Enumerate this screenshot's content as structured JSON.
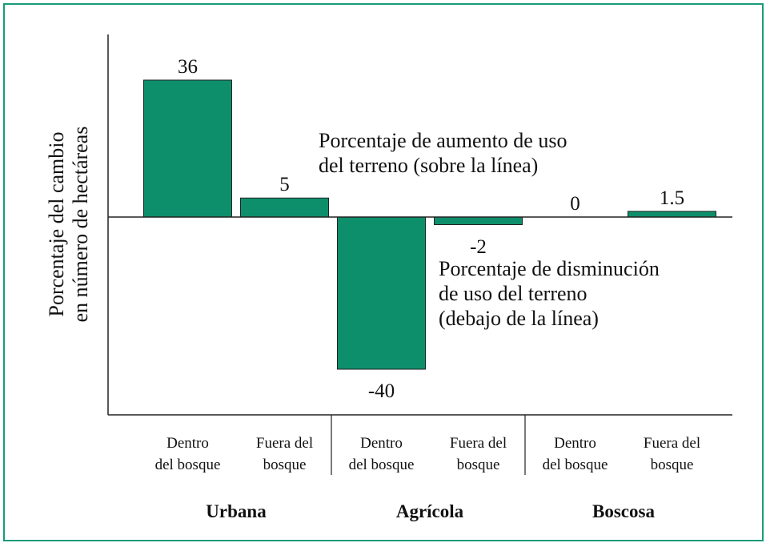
{
  "chart_data": {
    "type": "bar",
    "ylabel": "Porcentaje del cambio\nen número de hectáreas",
    "categories": [
      "Dentro\ndel bosque",
      "Fuera del\nbosque",
      "Dentro\ndel bosque",
      "Fuera del\nbosque",
      "Dentro\ndel bosque",
      "Fuera del\nbosque"
    ],
    "groups": [
      "Urbana",
      "Agrícola",
      "Boscosa"
    ],
    "values": [
      36,
      5,
      -40,
      -2,
      0,
      1.5
    ],
    "color": "#0d8f6c",
    "ylim": [
      -52,
      48
    ],
    "annotations": [
      "Porcentaje de aumento de uso\ndel terreno (sobre la línea)",
      "Porcentaje de disminución\nde uso del terreno\n(debajo de la línea)"
    ]
  }
}
